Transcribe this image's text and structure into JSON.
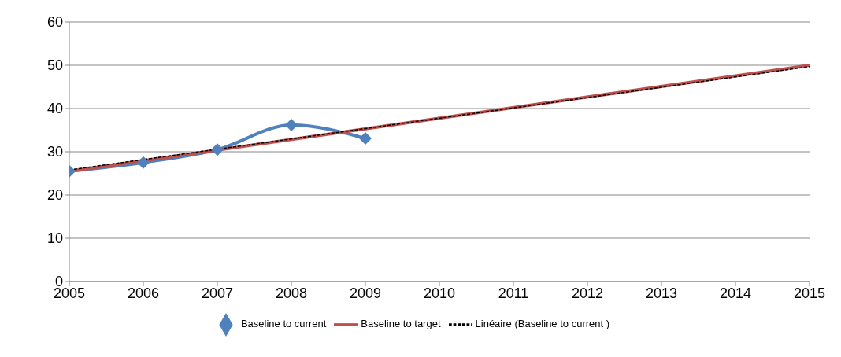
{
  "chart_data": {
    "type": "line",
    "series": [
      {
        "name": "Baseline to current",
        "color": "#4f81bd",
        "marker": "diamond",
        "line_style": "solid",
        "x": [
          2005,
          2006,
          2007,
          2008,
          2009
        ],
        "values": [
          25.5,
          27.5,
          30.5,
          36.2,
          33.1
        ]
      },
      {
        "name": "Baseline to target",
        "color": "#c0504d",
        "marker": "none",
        "line_style": "solid",
        "x": [
          2005,
          2015
        ],
        "values": [
          25.5,
          50
        ]
      },
      {
        "name": "Linéaire (Baseline to current )",
        "color": "#000000",
        "marker": "none",
        "line_style": "dashed",
        "x": [
          2005,
          2015
        ],
        "values": [
          25.8,
          49.7
        ]
      }
    ],
    "xlim": [
      2005,
      2015
    ],
    "xticks": [
      2005,
      2006,
      2007,
      2008,
      2009,
      2010,
      2011,
      2012,
      2013,
      2014,
      2015
    ],
    "ylim": [
      0,
      60
    ],
    "yticks": [
      0,
      10,
      20,
      30,
      40,
      50,
      60
    ],
    "grid": "y",
    "legend": "bottom"
  }
}
